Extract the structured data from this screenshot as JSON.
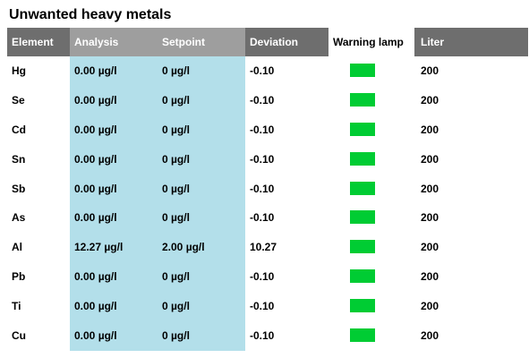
{
  "title": "Unwanted heavy metals",
  "columns": {
    "element": "Element",
    "analysis": "Analysis",
    "setpoint": "Setpoint",
    "deviation": "Deviation",
    "warning_lamp": "Warning lamp",
    "liter": "Liter"
  },
  "lamp_color": "#00cc33",
  "rows": [
    {
      "element": "Hg",
      "analysis": "0.00 µg/l",
      "setpoint": "0 µg/l",
      "deviation": "-0.10",
      "lamp": "green",
      "liter": "200"
    },
    {
      "element": "Se",
      "analysis": "0.00 µg/l",
      "setpoint": "0 µg/l",
      "deviation": "-0.10",
      "lamp": "green",
      "liter": "200"
    },
    {
      "element": "Cd",
      "analysis": "0.00 µg/l",
      "setpoint": "0 µg/l",
      "deviation": "-0.10",
      "lamp": "green",
      "liter": "200"
    },
    {
      "element": "Sn",
      "analysis": "0.00 µg/l",
      "setpoint": "0 µg/l",
      "deviation": "-0.10",
      "lamp": "green",
      "liter": "200"
    },
    {
      "element": "Sb",
      "analysis": "0.00 µg/l",
      "setpoint": "0 µg/l",
      "deviation": "-0.10",
      "lamp": "green",
      "liter": "200"
    },
    {
      "element": "As",
      "analysis": "0.00 µg/l",
      "setpoint": "0 µg/l",
      "deviation": "-0.10",
      "lamp": "green",
      "liter": "200"
    },
    {
      "element": "Al",
      "analysis": "12.27 µg/l",
      "setpoint": "2.00 µg/l",
      "deviation": "10.27",
      "lamp": "green",
      "liter": "200"
    },
    {
      "element": "Pb",
      "analysis": "0.00 µg/l",
      "setpoint": "0 µg/l",
      "deviation": "-0.10",
      "lamp": "green",
      "liter": "200"
    },
    {
      "element": "Ti",
      "analysis": "0.00 µg/l",
      "setpoint": "0 µg/l",
      "deviation": "-0.10",
      "lamp": "green",
      "liter": "200"
    },
    {
      "element": "Cu",
      "analysis": "0.00 µg/l",
      "setpoint": "0 µg/l",
      "deviation": "-0.10",
      "lamp": "green",
      "liter": "200"
    }
  ]
}
